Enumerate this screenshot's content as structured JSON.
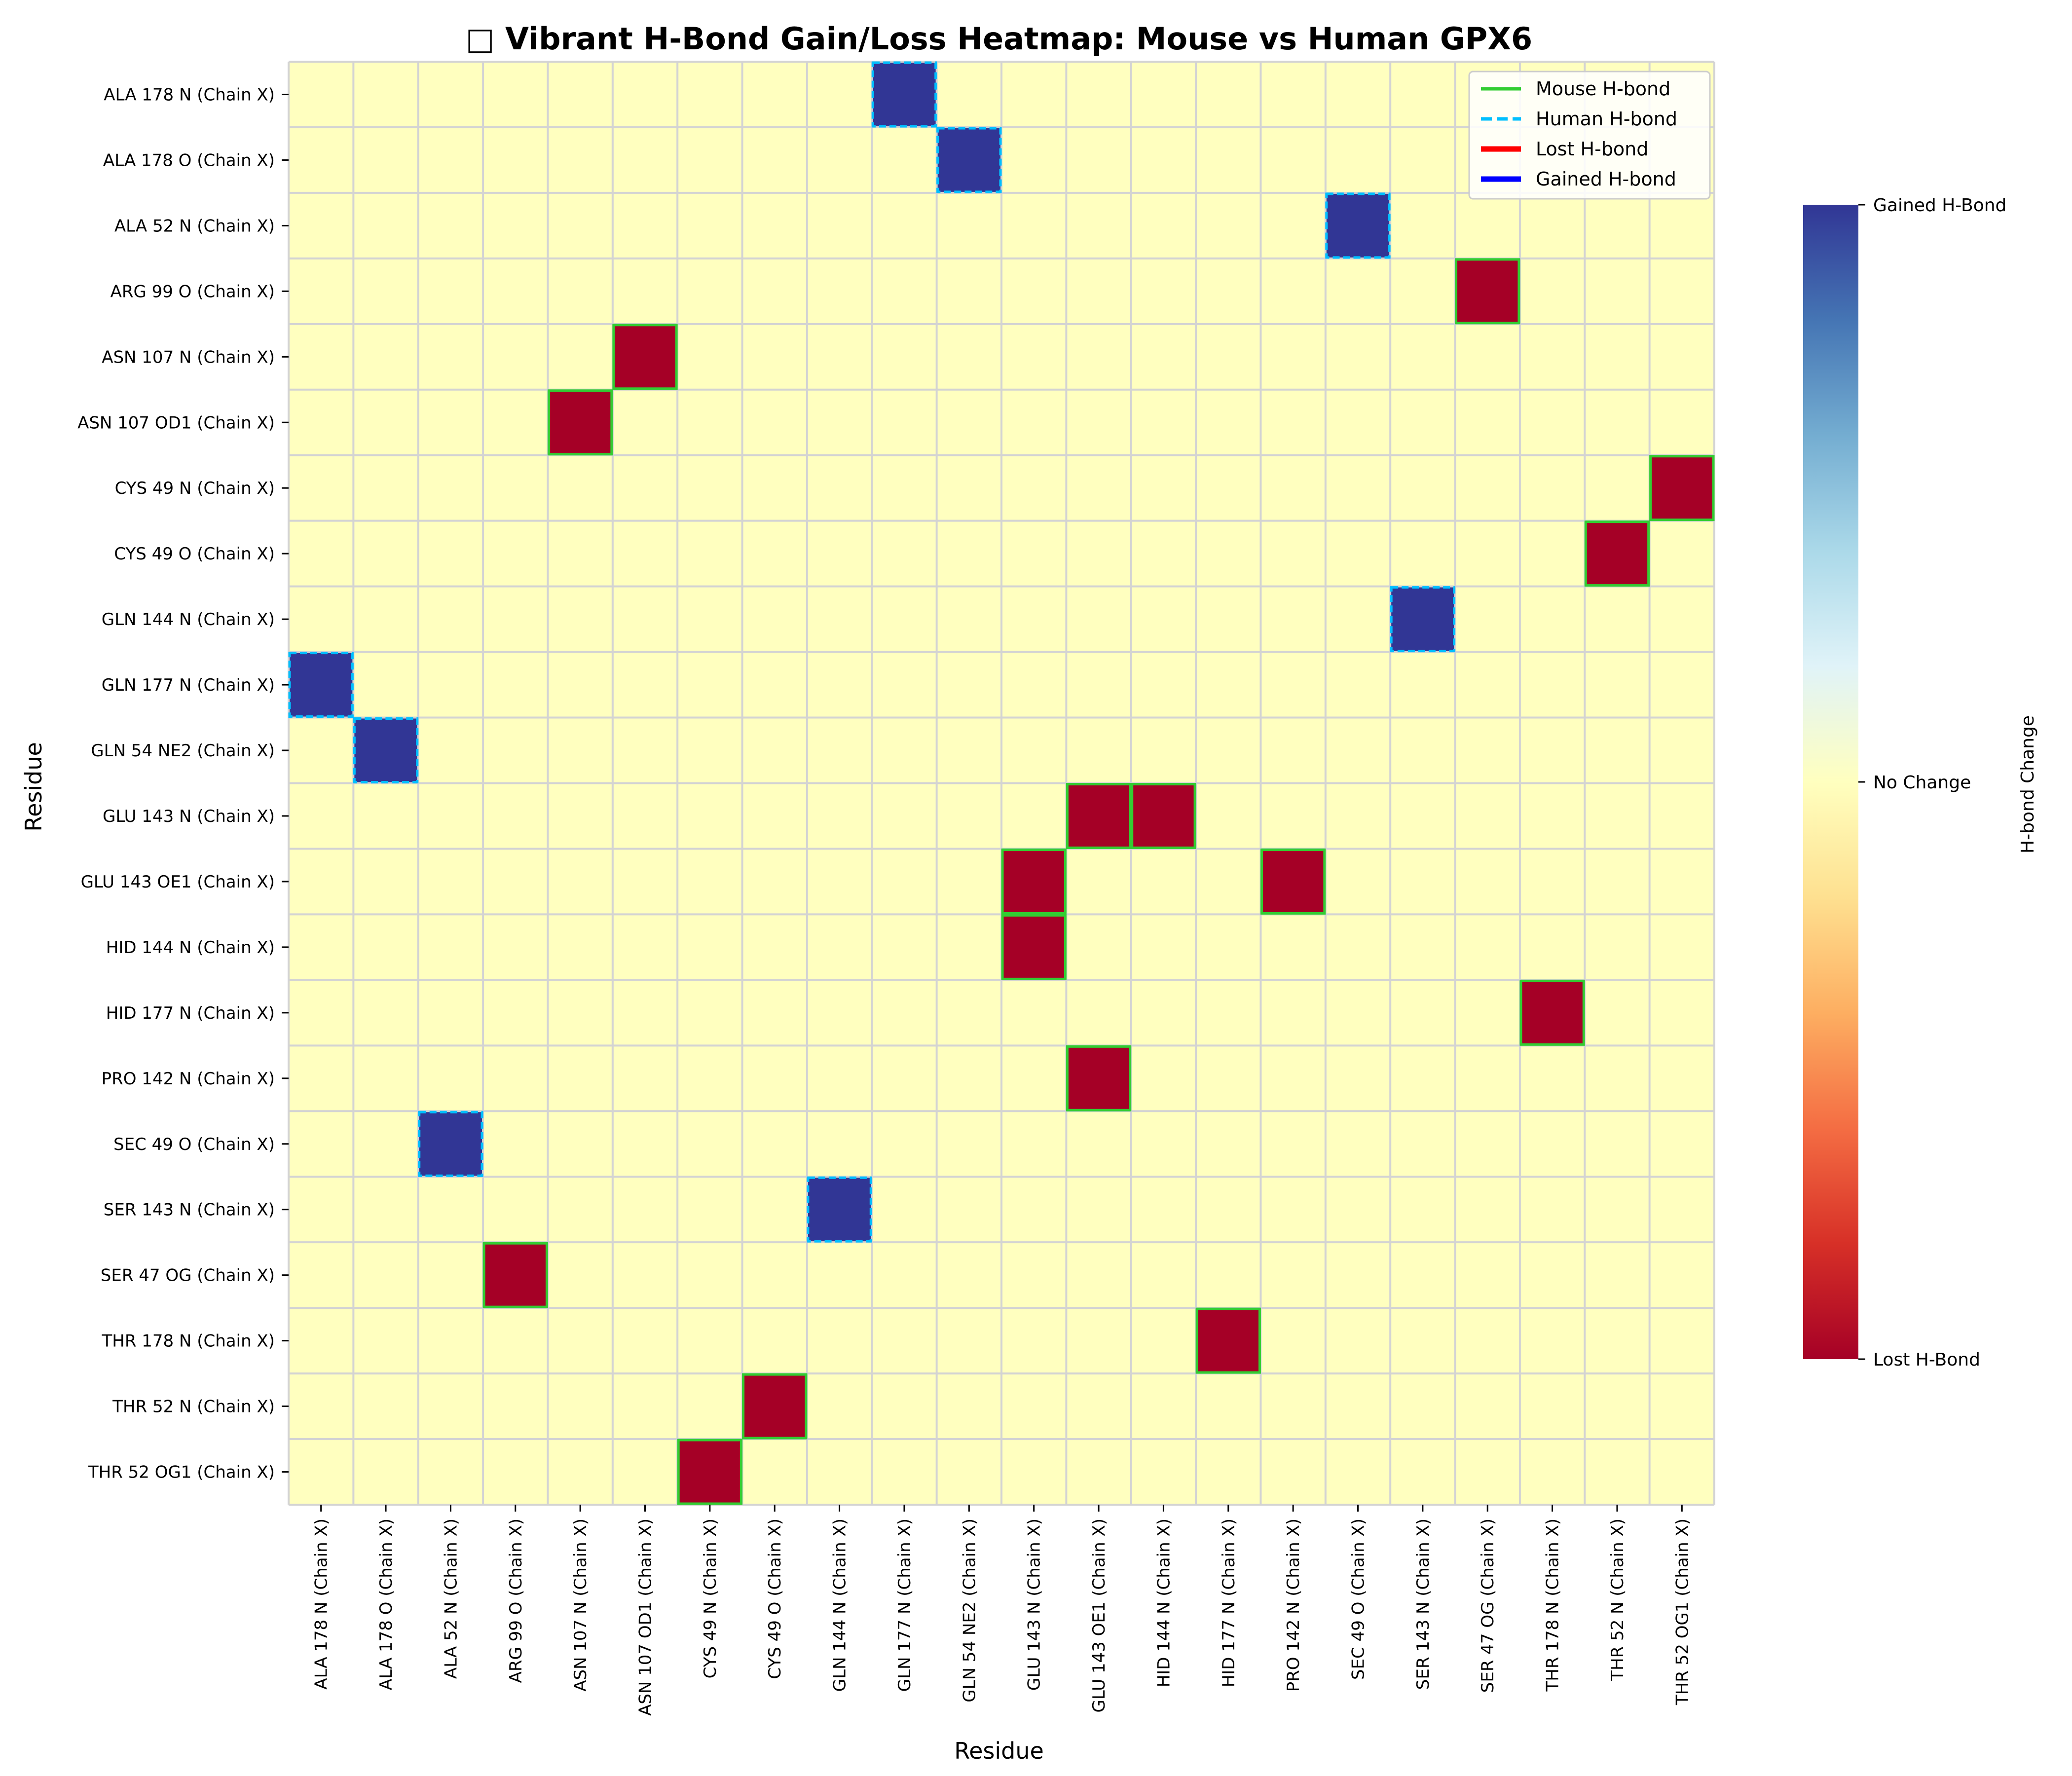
{
  "chart_data": {
    "type": "heatmap",
    "title": "□ Vibrant H-Bond Gain/Loss Heatmap: Mouse vs Human GPX6",
    "xlabel": "Residue",
    "ylabel": "Residue",
    "rows": [
      "ALA 178 N (Chain X)",
      "ALA 178 O (Chain X)",
      "ALA 52 N (Chain X)",
      "ARG 99 O (Chain X)",
      "ASN 107 N (Chain X)",
      "ASN 107 OD1 (Chain X)",
      "CYS 49 N (Chain X)",
      "CYS 49 O (Chain X)",
      "GLN 144 N (Chain X)",
      "GLN 177 N (Chain X)",
      "GLN 54 NE2 (Chain X)",
      "GLU 143 N (Chain X)",
      "GLU 143 OE1 (Chain X)",
      "HID 144 N (Chain X)",
      "HID 177 N (Chain X)",
      "PRO 142 N (Chain X)",
      "SEC 49 O (Chain X)",
      "SER 143 N (Chain X)",
      "SER 47 OG (Chain X)",
      "THR 178 N (Chain X)",
      "THR 52 N (Chain X)",
      "THR 52 OG1 (Chain X)"
    ],
    "columns": [
      "ALA 178 N (Chain X)",
      "ALA 178 O (Chain X)",
      "ALA 52 N (Chain X)",
      "ARG 99 O (Chain X)",
      "ASN 107 N (Chain X)",
      "ASN 107 OD1 (Chain X)",
      "CYS 49 N (Chain X)",
      "CYS 49 O (Chain X)",
      "GLN 144 N (Chain X)",
      "GLN 177 N (Chain X)",
      "GLN 54 NE2 (Chain X)",
      "GLU 143 N (Chain X)",
      "GLU 143 OE1 (Chain X)",
      "HID 144 N (Chain X)",
      "HID 177 N (Chain X)",
      "PRO 142 N (Chain X)",
      "SEC 49 O (Chain X)",
      "SER 143 N (Chain X)",
      "SER 47 OG (Chain X)",
      "THR 178 N (Chain X)",
      "THR 52 N (Chain X)",
      "THR 52 OG1 (Chain X)"
    ],
    "cells": [
      {
        "row": 0,
        "col": 9,
        "value": 1
      },
      {
        "row": 1,
        "col": 10,
        "value": 1
      },
      {
        "row": 2,
        "col": 16,
        "value": 1
      },
      {
        "row": 3,
        "col": 18,
        "value": -1
      },
      {
        "row": 4,
        "col": 5,
        "value": -1
      },
      {
        "row": 5,
        "col": 4,
        "value": -1
      },
      {
        "row": 6,
        "col": 21,
        "value": -1
      },
      {
        "row": 7,
        "col": 20,
        "value": -1
      },
      {
        "row": 8,
        "col": 17,
        "value": 1
      },
      {
        "row": 9,
        "col": 0,
        "value": 1
      },
      {
        "row": 10,
        "col": 1,
        "value": 1
      },
      {
        "row": 11,
        "col": 12,
        "value": -1
      },
      {
        "row": 11,
        "col": 13,
        "value": -1
      },
      {
        "row": 12,
        "col": 11,
        "value": -1
      },
      {
        "row": 12,
        "col": 15,
        "value": -1
      },
      {
        "row": 13,
        "col": 11,
        "value": -1
      },
      {
        "row": 14,
        "col": 19,
        "value": -1
      },
      {
        "row": 15,
        "col": 12,
        "value": -1
      },
      {
        "row": 16,
        "col": 2,
        "value": 1
      },
      {
        "row": 17,
        "col": 8,
        "value": 1
      },
      {
        "row": 18,
        "col": 3,
        "value": -1
      },
      {
        "row": 19,
        "col": 14,
        "value": -1
      },
      {
        "row": 20,
        "col": 7,
        "value": -1
      },
      {
        "row": 21,
        "col": 6,
        "value": -1
      }
    ],
    "zero_value": 0,
    "vlim": [
      -1,
      1
    ],
    "colors": {
      "no_change": "#ffffbf",
      "gained": "#313695",
      "lost": "#a50026",
      "grid": "#d3d3d3",
      "mouse_border": "#32cd32",
      "human_border": "#00bfff"
    },
    "colormap": "RdYlBu",
    "colorbar": {
      "label": "H-bond Change",
      "ticks": [
        {
          "value": 1,
          "label": "Gained H-Bond"
        },
        {
          "value": 0,
          "label": "No Change"
        },
        {
          "value": -1,
          "label": "Lost H-Bond"
        }
      ]
    },
    "legend": {
      "position": "top-right",
      "entries": [
        {
          "label": "Mouse H-bond",
          "color": "#32cd32",
          "style": "solid"
        },
        {
          "label": "Human H-bond",
          "color": "#00bfff",
          "style": "dashed"
        },
        {
          "label": "Lost H-bond",
          "color": "#ff0000",
          "style": "solid-thick"
        },
        {
          "label": "Gained H-bond",
          "color": "#0000ff",
          "style": "solid-thick"
        }
      ]
    }
  }
}
